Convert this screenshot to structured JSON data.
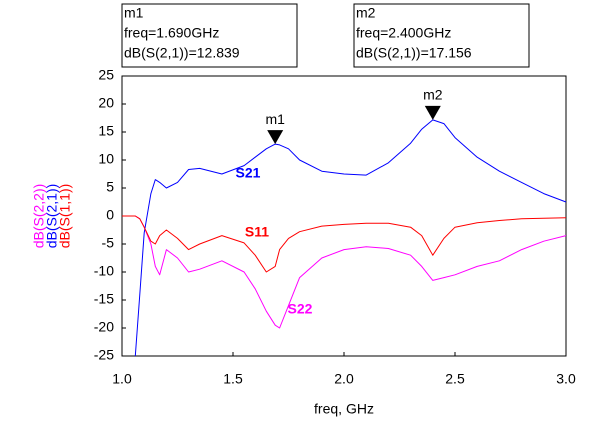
{
  "chart_data": {
    "type": "line",
    "xlabel": "freq, GHz",
    "x": [
      1.0,
      1.06,
      1.08,
      1.1,
      1.13,
      1.15,
      1.17,
      1.2,
      1.25,
      1.3,
      1.35,
      1.45,
      1.55,
      1.6,
      1.65,
      1.69,
      1.71,
      1.75,
      1.8,
      1.9,
      2.0,
      2.1,
      2.2,
      2.3,
      2.35,
      2.4,
      2.45,
      2.5,
      2.6,
      2.7,
      2.8,
      2.9,
      3.0
    ],
    "series": [
      {
        "name": "dB(S(2,2))",
        "label": "S22",
        "color": "#ff00ff",
        "values": [
          0,
          0,
          -0.5,
          -2,
          -5,
          -9,
          -10.5,
          -6,
          -7.5,
          -10,
          -9.5,
          -8,
          -10,
          -13,
          -17,
          -19.5,
          -20,
          -16,
          -11,
          -7.5,
          -6,
          -5.5,
          -5.8,
          -7,
          -9,
          -11.5,
          -11,
          -10.5,
          -9,
          -8,
          -6,
          -4.5,
          -3.5
        ]
      },
      {
        "name": "dB(S(2,1))",
        "label": "S21",
        "color": "#0000ff",
        "values": [
          null,
          -25,
          -14,
          -3,
          4,
          6.5,
          6,
          5,
          6,
          8.3,
          8.5,
          7.5,
          9,
          10.5,
          12,
          12.839,
          12.7,
          12,
          10,
          8,
          7.5,
          7.3,
          9.5,
          13,
          15.5,
          17.156,
          16.5,
          14,
          10.5,
          8,
          6,
          4,
          2.5
        ]
      },
      {
        "name": "dB(S(1,1))",
        "label": "S11",
        "color": "#ff0000",
        "values": [
          0,
          0,
          -0.5,
          -2,
          -4.5,
          -5,
          -3.5,
          -2.5,
          -4,
          -6,
          -5,
          -3.5,
          -4.8,
          -7,
          -10,
          -9,
          -6,
          -4,
          -2.8,
          -1.8,
          -1.5,
          -1.3,
          -1.3,
          -2,
          -3.5,
          -7,
          -4,
          -2,
          -1.2,
          -0.8,
          -0.5,
          -0.4,
          -0.3
        ]
      }
    ],
    "markers": [
      {
        "name": "m1",
        "lines": [
          "m1",
          "freq=1.690GHz",
          "dB(S(2,1))=12.839"
        ],
        "x": 1.69,
        "y": 12.839
      },
      {
        "name": "m2",
        "lines": [
          "m2",
          "freq=2.400GHz",
          "dB(S(2,1))=17.156"
        ],
        "x": 2.4,
        "y": 17.156
      }
    ],
    "xlim": [
      1.0,
      3.0
    ],
    "ylim": [
      -25,
      25
    ],
    "xticks": [
      {
        "value": 1.0,
        "label": "1.0"
      },
      1.5,
      {
        "value": 2.0,
        "label": "2.0"
      },
      2.5,
      {
        "value": 3.0,
        "label": "3.0"
      }
    ],
    "yticks": [
      25,
      20,
      15,
      10,
      5,
      0,
      -5,
      -10,
      -15,
      -20,
      -25
    ]
  }
}
